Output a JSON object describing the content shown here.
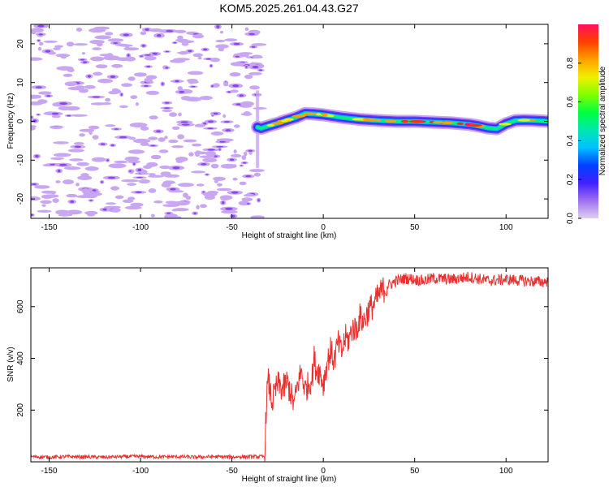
{
  "figure": {
    "title": "KOM5.2025.261.04.43.G27"
  },
  "colors": {
    "line": "#e8302e",
    "frame": "#000000",
    "noise": "#c9a6f2",
    "noise_dark": "#8a44ee"
  },
  "chart_data": [
    {
      "type": "heatmap",
      "title": "KOM5.2025.261.04.43.G27",
      "xlabel": "Height of straight line (km)",
      "ylabel": "Frequency (Hz)",
      "xlim": [
        -160,
        123
      ],
      "ylim": [
        -25,
        25
      ],
      "xticks": [
        -150,
        -100,
        -50,
        0,
        50,
        100
      ],
      "yticks": [
        -20,
        -10,
        0,
        10,
        20
      ],
      "signal_onset_km": -36,
      "ridge": {
        "x": [
          -36,
          -34,
          -30,
          -25,
          -20,
          -15,
          -10,
          -5,
          0,
          10,
          20,
          30,
          40,
          50,
          60,
          70,
          80,
          85,
          90,
          95,
          100,
          105,
          110,
          115,
          120,
          123
        ],
        "y": [
          -1.5,
          -1.8,
          -1.2,
          -0.5,
          0.3,
          1.0,
          2.0,
          1.9,
          1.7,
          1.0,
          0.5,
          0.2,
          0.0,
          0.0,
          -0.2,
          -0.4,
          -0.8,
          -1.2,
          -1.7,
          -1.9,
          -0.6,
          0.2,
          0.3,
          0.2,
          0.1,
          0.0
        ]
      },
      "colorbar": {
        "label": "Normalized spectral amplitude",
        "range": [
          0,
          1
        ],
        "ticks": [
          "0.0",
          "0.2",
          "0.4",
          "0.6",
          "0.8"
        ],
        "tick_values": [
          0.0,
          0.2,
          0.4,
          0.6,
          0.8
        ],
        "colors": [
          "#dcd0f0",
          "#a070f0",
          "#4020ff",
          "#0040ff",
          "#00c0ff",
          "#00e8b0",
          "#00ff40",
          "#80ff00",
          "#f0f000",
          "#ffa000",
          "#ff4000",
          "#ff1060"
        ]
      }
    },
    {
      "type": "line",
      "xlabel": "Height of straight line (km)",
      "ylabel": "SNR (v/v)",
      "xlim": [
        -160,
        123
      ],
      "ylim": [
        0,
        750
      ],
      "xticks": [
        -150,
        -100,
        -50,
        0,
        50,
        100
      ],
      "yticks": [
        200,
        400,
        600
      ],
      "series": [
        {
          "name": "SNR",
          "x": [
            -160,
            -150,
            -140,
            -130,
            -120,
            -110,
            -100,
            -90,
            -80,
            -70,
            -60,
            -50,
            -40,
            -32,
            -31,
            -30,
            -28,
            -25,
            -22,
            -20,
            -18,
            -16,
            -14,
            -12,
            -10,
            -8,
            -6,
            -5,
            -4,
            -2,
            0,
            2,
            4,
            6,
            8,
            10,
            12,
            14,
            16,
            18,
            20,
            22,
            25,
            28,
            30,
            32,
            35,
            40,
            45,
            50,
            55,
            60,
            70,
            80,
            90,
            100,
            110,
            120,
            123
          ],
          "y": [
            20,
            18,
            20,
            19,
            18,
            20,
            21,
            19,
            20,
            18,
            20,
            19,
            20,
            20,
            260,
            310,
            230,
            300,
            280,
            310,
            270,
            220,
            300,
            350,
            280,
            300,
            330,
            400,
            360,
            350,
            300,
            380,
            430,
            390,
            460,
            420,
            480,
            470,
            520,
            510,
            560,
            540,
            590,
            610,
            640,
            660,
            680,
            700,
            710,
            705,
            700,
            710,
            705,
            715,
            700,
            705,
            700,
            695,
            700
          ]
        }
      ]
    }
  ]
}
